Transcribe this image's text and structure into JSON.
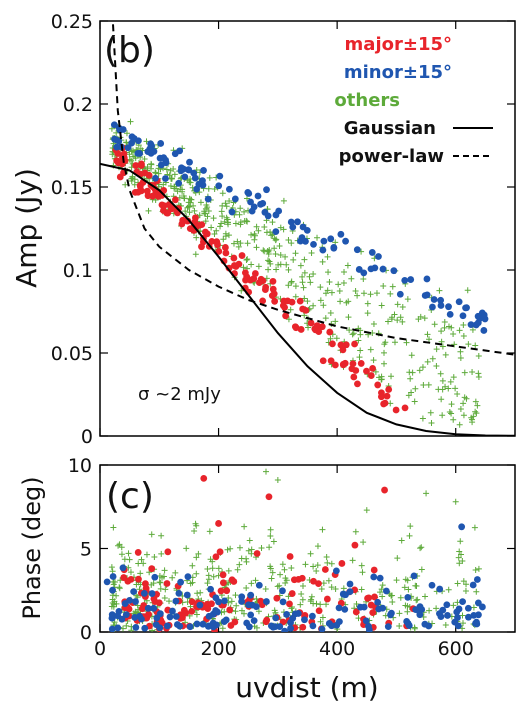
{
  "chart_data": [
    {
      "type": "scatter",
      "panel_label": "(b)",
      "ylabel": "Amp (Jy)",
      "xlim": [
        0,
        700
      ],
      "ylim": [
        0,
        0.25
      ],
      "yticks": [
        "0",
        "0.05",
        "0.1",
        "0.15",
        "0.2",
        "0.25"
      ],
      "xticks": [
        0,
        200,
        400,
        600
      ],
      "annotation": "σ ~2 mJy",
      "legend_position": "top-right",
      "series": [
        {
          "name": "major±15°",
          "marker": "circle",
          "color": "#e8242b",
          "band": {
            "a": 0.175,
            "b": -0.00031,
            "noise": 0.01
          },
          "x_range": [
            25,
            520
          ],
          "count": 150
        },
        {
          "name": "minor±15°",
          "marker": "circle",
          "color": "#1f56b0",
          "band": {
            "a": 0.185,
            "b": -0.00018,
            "noise": 0.009
          },
          "x_range": [
            15,
            650
          ],
          "count": 120
        },
        {
          "name": "others",
          "marker": "plus",
          "color": "#5daa3a",
          "band": {
            "a": 0.18,
            "b": -0.00024,
            "noise": 0.03
          },
          "x_range": [
            20,
            640
          ],
          "count": 550
        },
        {
          "name": "Gaussian",
          "type": "line",
          "style": "solid",
          "color": "#000000",
          "x": [
            0,
            50,
            100,
            150,
            200,
            250,
            300,
            350,
            400,
            450,
            500,
            550,
            600,
            650,
            700
          ],
          "y": [
            0.164,
            0.16,
            0.148,
            0.13,
            0.108,
            0.085,
            0.062,
            0.042,
            0.026,
            0.014,
            0.007,
            0.003,
            0.001,
            0.0003,
            0.0001
          ]
        },
        {
          "name": "power-law",
          "type": "line",
          "style": "dashed",
          "color": "#000000",
          "x": [
            22,
            30,
            40,
            50,
            75,
            100,
            150,
            200,
            250,
            300,
            400,
            500,
            600,
            700
          ],
          "y": [
            0.248,
            0.196,
            0.165,
            0.148,
            0.125,
            0.114,
            0.1,
            0.09,
            0.082,
            0.076,
            0.066,
            0.059,
            0.054,
            0.049
          ]
        }
      ]
    },
    {
      "type": "scatter",
      "panel_label": "(c)",
      "xlabel": "uvdist (m)",
      "ylabel": "Phase (deg)",
      "xlim": [
        0,
        700
      ],
      "ylim": [
        0,
        10
      ],
      "yticks": [
        "0",
        "5",
        "10"
      ],
      "xticks": [
        "0",
        "200",
        "400",
        "600"
      ],
      "series": [
        {
          "name": "major±15°",
          "marker": "circle",
          "color": "#e8242b",
          "x_range": [
            40,
            530
          ],
          "phase_max": 4.5,
          "count": 130,
          "outliers": [
            [
              175,
              9.2
            ],
            [
              285,
              8.1
            ],
            [
              480,
              8.5
            ],
            [
              430,
              5.2
            ],
            [
              200,
              6.5
            ],
            [
              265,
              4.7
            ]
          ]
        },
        {
          "name": "minor±15°",
          "marker": "circle",
          "color": "#1f56b0",
          "x_range": [
            20,
            645
          ],
          "phase_max": 3.2,
          "count": 150,
          "outliers": [
            [
              610,
              6.3
            ],
            [
              645,
              1.5
            ],
            [
              12,
              3.0
            ],
            [
              560,
              2.8
            ]
          ]
        },
        {
          "name": "others",
          "marker": "plus",
          "color": "#5daa3a",
          "x_range": [
            20,
            640
          ],
          "phase_max": 6.0,
          "count": 420,
          "outliers": [
            [
              280,
              9.6
            ],
            [
              300,
              9.1
            ],
            [
              550,
              8.3
            ],
            [
              600,
              7.8
            ],
            [
              450,
              7.3
            ]
          ]
        }
      ]
    }
  ]
}
